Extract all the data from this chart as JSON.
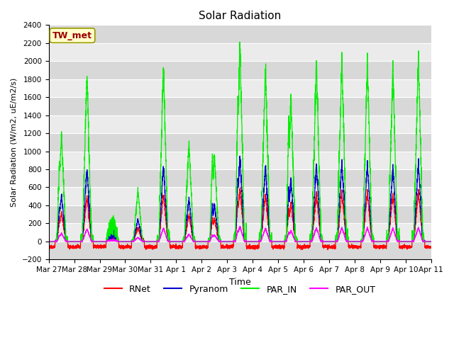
{
  "title": "Solar Radiation",
  "ylabel": "Solar Radiation (W/m2, uE/m2/s)",
  "xlabel": "Time",
  "ylim": [
    -200,
    2400
  ],
  "annotation": "TW_met",
  "x_tick_labels": [
    "Mar 27",
    "Mar 28",
    "Mar 29",
    "Mar 30",
    "Mar 31",
    "Apr 1",
    "Apr 2",
    "Apr 3",
    "Apr 4",
    "Apr 5",
    "Apr 6",
    "Apr 7",
    "Apr 8",
    "Apr 9",
    "Apr 10",
    "Apr 11"
  ],
  "colors": {
    "RNet": "#ff0000",
    "Pyranom": "#0000cc",
    "PAR_IN": "#00ee00",
    "PAR_OUT": "#ff00ff"
  },
  "plot_bg": "#ebebeb",
  "title_fontsize": 11,
  "ylabel_fontsize": 8,
  "xlabel_fontsize": 9,
  "tick_fontsize": 7.5,
  "num_days": 15,
  "seed": 42,
  "par_in_peaks": [
    1200,
    1850,
    0,
    570,
    1950,
    1100,
    950,
    2200,
    1950,
    1600,
    2000,
    2050,
    2000,
    1950,
    2050
  ],
  "par_in_secondary": [
    880,
    0,
    0,
    270,
    0,
    0,
    960,
    1650,
    740,
    1410,
    880,
    0,
    0,
    0,
    0
  ],
  "pyranom_scale": 0.43,
  "rnet_scale": 0.27,
  "par_out_scale": 0.075,
  "par_out_flat_max": 170,
  "rnet_night": -60,
  "linewidth": 0.9
}
